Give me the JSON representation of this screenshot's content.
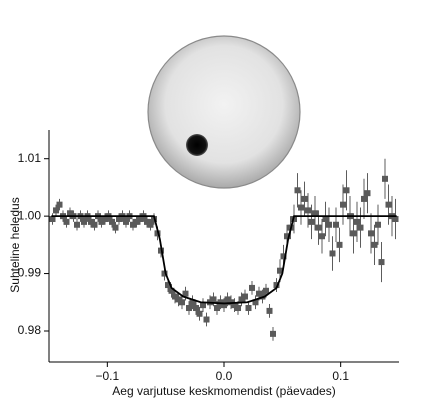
{
  "chart_data": {
    "type": "scatter",
    "xlabel": "Aeg varjutuse keskmomendist (päevades)",
    "ylabel": "Suhteline heledus",
    "xlim": [
      -0.15,
      0.15
    ],
    "ylim": [
      0.9746,
      1.015
    ],
    "xticks": [
      {
        "value": -0.1,
        "label": "−0.1"
      },
      {
        "value": 0,
        "label": "0.0"
      },
      0.1
    ],
    "yticks": [
      0.98,
      0.99,
      {
        "value": 1,
        "label": "1.00"
      },
      1.01
    ],
    "series": [
      {
        "type": "scatter",
        "color": "#5a5a5a",
        "x": [
          -0.147,
          -0.144,
          -0.141,
          -0.138,
          -0.135,
          -0.132,
          -0.129,
          -0.126,
          -0.123,
          -0.12,
          -0.117,
          -0.114,
          -0.111,
          -0.108,
          -0.105,
          -0.102,
          -0.099,
          -0.096,
          -0.093,
          -0.09,
          -0.087,
          -0.084,
          -0.081,
          -0.078,
          -0.075,
          -0.072,
          -0.069,
          -0.066,
          -0.063,
          -0.06,
          -0.057,
          -0.054,
          -0.051,
          -0.048,
          -0.045,
          -0.042,
          -0.039,
          -0.036,
          -0.033,
          -0.03,
          -0.027,
          -0.024,
          -0.021,
          -0.018,
          -0.015,
          -0.012,
          -0.009,
          -0.006,
          -0.003,
          0,
          0.003,
          0.006,
          0.009,
          0.012,
          0.015,
          0.018,
          0.021,
          0.024,
          0.027,
          0.03,
          0.033,
          0.036,
          0.039,
          0.042,
          0.045,
          0.048,
          0.051,
          0.054,
          0.057,
          0.06,
          0.063,
          0.066,
          0.069,
          0.072,
          0.075,
          0.078,
          0.081,
          0.084,
          0.087,
          0.09,
          0.093,
          0.096,
          0.099,
          0.102,
          0.105,
          0.108,
          0.111,
          0.114,
          0.117,
          0.12,
          0.123,
          0.126,
          0.129,
          0.132,
          0.135,
          0.138,
          0.141,
          0.144,
          0.147
        ],
        "values": [
          0.9995,
          1.001,
          1.002,
          1.0,
          0.999,
          1.0005,
          1.0,
          0.9985,
          1.0,
          0.999,
          1.0,
          0.999,
          0.9985,
          1.0,
          0.999,
          0.9995,
          1.0,
          0.999,
          0.998,
          0.9995,
          1.0,
          0.999,
          1.0,
          0.9985,
          0.999,
          0.9995,
          1.0,
          0.999,
          0.9985,
          0.9995,
          0.997,
          0.994,
          0.99,
          0.988,
          0.987,
          0.986,
          0.9855,
          0.985,
          0.9865,
          0.984,
          0.985,
          0.984,
          0.983,
          0.9845,
          0.982,
          0.985,
          0.9855,
          0.984,
          0.985,
          0.9845,
          0.9855,
          0.985,
          0.9845,
          0.984,
          0.9855,
          0.986,
          0.984,
          0.9875,
          0.985,
          0.9865,
          0.986,
          0.987,
          0.9835,
          0.9795,
          0.988,
          0.9905,
          0.993,
          0.9965,
          0.998,
          0.9995,
          1.0045,
          1.0015,
          1.003,
          1.001,
          0.999,
          1.0005,
          0.998,
          0.9965,
          0.9995,
          0.9985,
          0.9935,
          0.9985,
          0.995,
          1.002,
          1.0045,
          1.0,
          0.997,
          0.999,
          0.998,
          1.003,
          1.004,
          0.997,
          0.995,
          0.9985,
          0.992,
          1.0065,
          1.002,
          1.0,
          0.9995
        ],
        "errors": [
          0.001,
          0.001,
          0.001,
          0.001,
          0.001,
          0.001,
          0.001,
          0.001,
          0.001,
          0.001,
          0.001,
          0.001,
          0.001,
          0.001,
          0.001,
          0.001,
          0.001,
          0.001,
          0.001,
          0.001,
          0.001,
          0.001,
          0.001,
          0.001,
          0.001,
          0.001,
          0.001,
          0.001,
          0.001,
          0.001,
          0.0012,
          0.0012,
          0.0012,
          0.0012,
          0.0012,
          0.0012,
          0.0012,
          0.0012,
          0.0012,
          0.0012,
          0.0012,
          0.0012,
          0.0012,
          0.0012,
          0.0012,
          0.0012,
          0.0012,
          0.0012,
          0.0012,
          0.0012,
          0.0012,
          0.0012,
          0.0012,
          0.0012,
          0.0012,
          0.0012,
          0.0012,
          0.0012,
          0.0012,
          0.0012,
          0.0012,
          0.0012,
          0.0012,
          0.0012,
          0.0012,
          0.002,
          0.002,
          0.002,
          0.002,
          0.0025,
          0.003,
          0.003,
          0.003,
          0.003,
          0.003,
          0.003,
          0.003,
          0.003,
          0.003,
          0.003,
          0.003,
          0.003,
          0.003,
          0.0035,
          0.0035,
          0.0035,
          0.0035,
          0.0035,
          0.0035,
          0.0035,
          0.0035,
          0.0035,
          0.0035,
          0.0035,
          0.0035,
          0.0035,
          0.0035,
          0.0035,
          0.0035
        ]
      },
      {
        "type": "line",
        "color": "#000000",
        "x": [
          -0.148,
          -0.06,
          -0.055,
          -0.05,
          -0.045,
          -0.035,
          -0.02,
          0,
          0.02,
          0.035,
          0.045,
          0.05,
          0.055,
          0.06,
          0.148
        ],
        "values": [
          1.0,
          1.0,
          0.996,
          0.99,
          0.9875,
          0.986,
          0.985,
          0.9848,
          0.985,
          0.986,
          0.9875,
          0.99,
          0.996,
          1.0,
          1.0
        ]
      }
    ]
  }
}
